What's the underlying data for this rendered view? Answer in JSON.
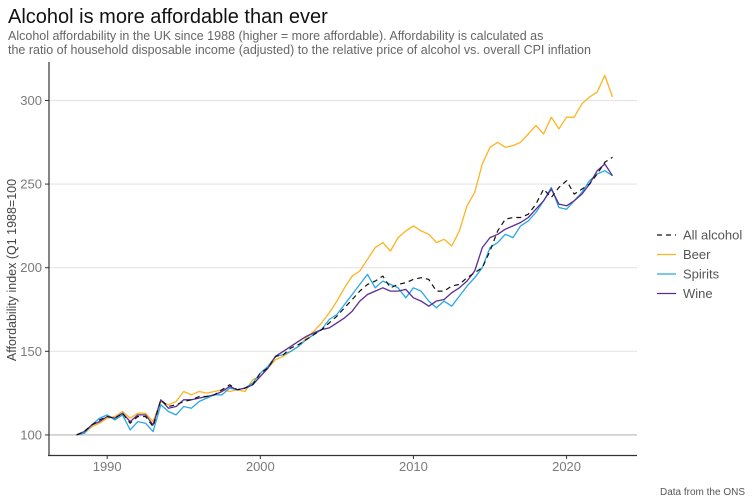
{
  "chart_data": {
    "type": "line",
    "title": "Alcohol is more affordable than ever",
    "subtitle": [
      "Alcohol affordability in the UK since 1988 (higher = more affordable). Affordability is calculated as",
      "the ratio of household disposable income (adjusted) to the relative price of alcohol vs. overall CPI inflation"
    ],
    "xlabel": "",
    "ylabel": "Affordability index (Q1 1988=100",
    "caption": "Data from the ONS",
    "xlim": [
      1986.2,
      2024.6
    ],
    "ylim": [
      88,
      323
    ],
    "xticks": [
      1990,
      2000,
      2010,
      2020
    ],
    "yticks": [
      100,
      150,
      200,
      250,
      300
    ],
    "grid": "horizontal",
    "legend_position": "right",
    "x": [
      1988,
      1988.5,
      1989,
      1989.5,
      1990,
      1990.5,
      1991,
      1991.5,
      1992,
      1992.5,
      1993,
      1993.5,
      1994,
      1994.5,
      1995,
      1995.5,
      1996,
      1996.5,
      1997,
      1997.5,
      1998,
      1998.5,
      1999,
      1999.5,
      2000,
      2000.5,
      2001,
      2001.5,
      2002,
      2002.5,
      2003,
      2003.5,
      2004,
      2004.5,
      2005,
      2005.5,
      2006,
      2006.5,
      2007,
      2007.5,
      2008,
      2008.5,
      2009,
      2009.5,
      2010,
      2010.5,
      2011,
      2011.5,
      2012,
      2012.5,
      2013,
      2013.5,
      2014,
      2014.5,
      2015,
      2015.5,
      2016,
      2016.5,
      2017,
      2017.5,
      2018,
      2018.5,
      2019,
      2019.5,
      2020,
      2020.5,
      2021,
      2021.5,
      2022,
      2022.5,
      2023
    ],
    "series": [
      {
        "name": "All alcohol",
        "color": "#111111",
        "dashed": true,
        "values": [
          100,
          102,
          106,
          109,
          111,
          110,
          113,
          107,
          111,
          111,
          105,
          121,
          117,
          118,
          120,
          121,
          123,
          123,
          124,
          127,
          130,
          127,
          128,
          130,
          137,
          140,
          147,
          148,
          152,
          154,
          157,
          160,
          163,
          167,
          171,
          176,
          181,
          186,
          190,
          192,
          195,
          188,
          190,
          191,
          193,
          194,
          193,
          186,
          186,
          189,
          190,
          194,
          197,
          200,
          210,
          222,
          229,
          230,
          230,
          232,
          238,
          247,
          242,
          248,
          252,
          244,
          247,
          250,
          256,
          263,
          266
        ]
      },
      {
        "name": "Beer",
        "color": "#FBB423",
        "dashed": false,
        "values": [
          100,
          101,
          105,
          107,
          110,
          111,
          114,
          110,
          113,
          113,
          108,
          120,
          118,
          120,
          126,
          124,
          126,
          125,
          126,
          127,
          126,
          127,
          126,
          133,
          135,
          140,
          145,
          147,
          150,
          153,
          158,
          162,
          167,
          173,
          180,
          188,
          195,
          198,
          205,
          212,
          215,
          210,
          218,
          222,
          225,
          222,
          220,
          215,
          217,
          213,
          222,
          237,
          245,
          262,
          272,
          275,
          272,
          273,
          275,
          280,
          285,
          280,
          290,
          283,
          290,
          290,
          298,
          302,
          305,
          315,
          302
        ]
      },
      {
        "name": "Spirits",
        "color": "#29A8E6",
        "dashed": false,
        "values": [
          100,
          101,
          106,
          110,
          112,
          109,
          112,
          103,
          108,
          107,
          102,
          118,
          114,
          112,
          117,
          116,
          120,
          122,
          124,
          124,
          128,
          127,
          128,
          131,
          137,
          141,
          147,
          148,
          150,
          153,
          157,
          160,
          163,
          169,
          172,
          178,
          184,
          190,
          196,
          188,
          192,
          190,
          188,
          182,
          188,
          186,
          180,
          176,
          180,
          177,
          183,
          189,
          194,
          200,
          212,
          215,
          220,
          218,
          225,
          228,
          233,
          240,
          248,
          236,
          235,
          240,
          245,
          252,
          256,
          258,
          255
        ]
      },
      {
        "name": "Wine",
        "color": "#5C2D91",
        "dashed": false,
        "values": [
          100,
          102,
          106,
          108,
          111,
          110,
          113,
          108,
          112,
          112,
          106,
          121,
          116,
          117,
          121,
          121,
          122,
          123,
          124,
          126,
          129,
          127,
          128,
          130,
          135,
          140,
          147,
          150,
          153,
          156,
          159,
          161,
          163,
          164,
          167,
          170,
          174,
          180,
          184,
          186,
          188,
          186,
          186,
          187,
          182,
          180,
          177,
          180,
          181,
          185,
          188,
          192,
          198,
          212,
          218,
          220,
          223,
          225,
          227,
          230,
          235,
          240,
          247,
          238,
          237,
          240,
          244,
          250,
          258,
          262,
          255
        ]
      }
    ]
  }
}
